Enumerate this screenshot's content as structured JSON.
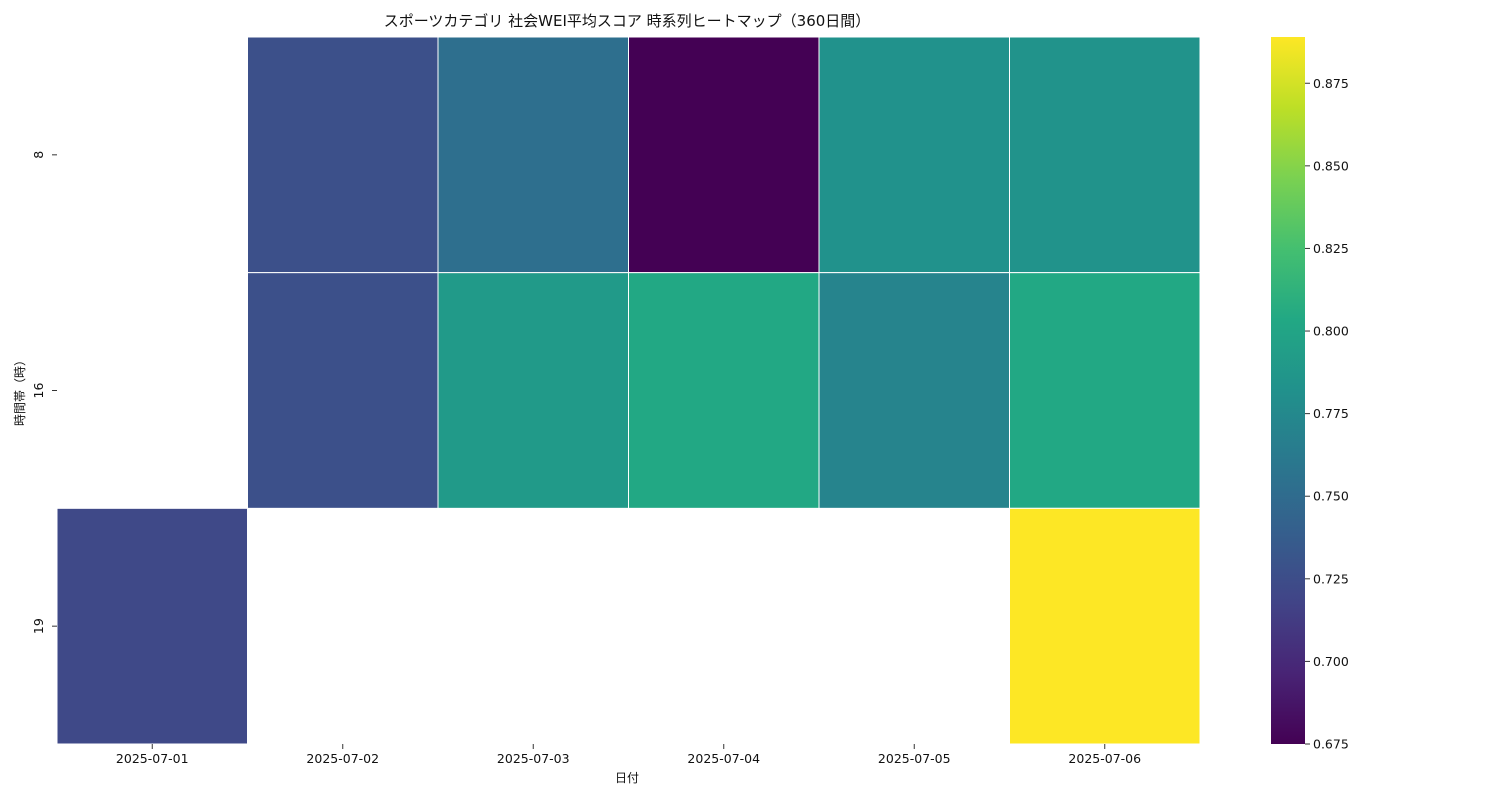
{
  "chart_data": {
    "type": "heatmap",
    "title": "スポーツカテゴリ 社会WEI平均スコア 時系列ヒートマップ（360日間）",
    "xlabel": "日付",
    "ylabel": "時間帯（時）",
    "x_categories": [
      "2025-07-01",
      "2025-07-02",
      "2025-07-03",
      "2025-07-04",
      "2025-07-05",
      "2025-07-06"
    ],
    "y_categories": [
      "8",
      "16",
      "19"
    ],
    "values": [
      [
        null,
        0.727,
        0.753,
        0.675,
        0.783,
        0.784
      ],
      [
        null,
        0.727,
        0.79,
        0.803,
        0.771,
        0.803
      ],
      [
        0.722,
        null,
        null,
        null,
        null,
        0.889
      ]
    ],
    "colormap": "viridis",
    "color_range": [
      0.675,
      0.889
    ],
    "colorbar_ticks": [
      "0.675",
      "0.700",
      "0.725",
      "0.750",
      "0.775",
      "0.800",
      "0.825",
      "0.850",
      "0.875"
    ],
    "missing_color": "#ffffff",
    "grid": false,
    "legend": "colorbar-right"
  }
}
